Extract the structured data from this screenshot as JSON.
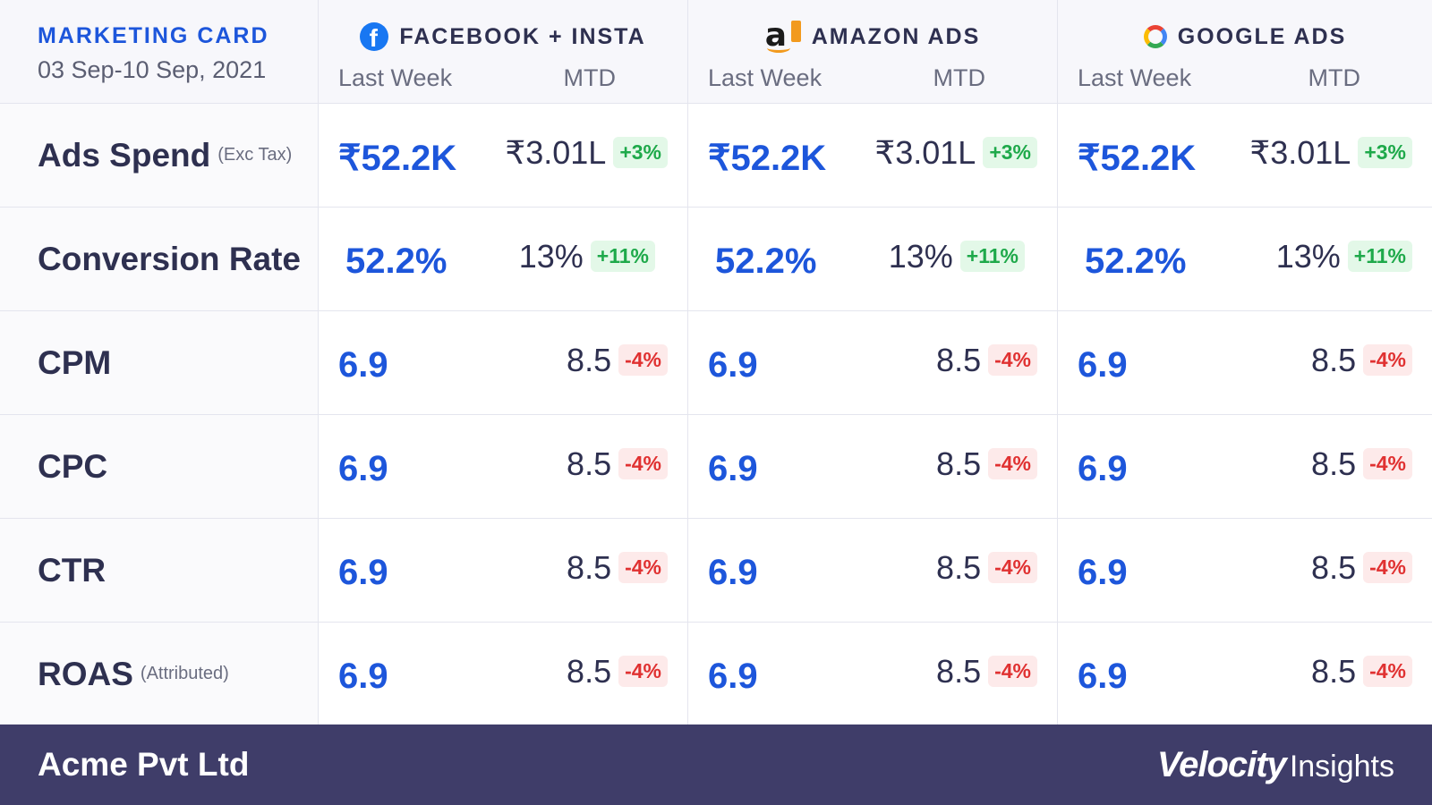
{
  "header": {
    "title": "MARKETING CARD",
    "date_range": "03 Sep-10 Sep, 2021"
  },
  "platforms": [
    {
      "name": "FACEBOOK + INSTA",
      "icon": "facebook-icon",
      "col_last_week": "Last Week",
      "col_mtd": "MTD"
    },
    {
      "name": "AMAZON ADS",
      "icon": "amazon-icon",
      "col_last_week": "Last Week",
      "col_mtd": "MTD"
    },
    {
      "name": "GOOGLE ADS",
      "icon": "google-icon",
      "col_last_week": "Last Week",
      "col_mtd": "MTD"
    }
  ],
  "metrics": [
    {
      "label": "Ads Spend",
      "sub": "(Exc Tax)",
      "values": [
        {
          "last_week": "₹52.2K",
          "mtd": "₹3.01L",
          "change": "+3%",
          "direction": "up"
        },
        {
          "last_week": "₹52.2K",
          "mtd": "₹3.01L",
          "change": "+3%",
          "direction": "up"
        },
        {
          "last_week": "₹52.2K",
          "mtd": "₹3.01L",
          "change": "+3%",
          "direction": "up"
        }
      ]
    },
    {
      "label": "Conversion Rate",
      "sub": "",
      "values": [
        {
          "last_week": "52.2%",
          "mtd": "13%",
          "change": "+11%",
          "direction": "up"
        },
        {
          "last_week": "52.2%",
          "mtd": "13%",
          "change": "+11%",
          "direction": "up"
        },
        {
          "last_week": "52.2%",
          "mtd": "13%",
          "change": "+11%",
          "direction": "up"
        }
      ]
    },
    {
      "label": "CPM",
      "sub": "",
      "values": [
        {
          "last_week": "6.9",
          "mtd": "8.5",
          "change": "-4%",
          "direction": "down"
        },
        {
          "last_week": "6.9",
          "mtd": "8.5",
          "change": "-4%",
          "direction": "down"
        },
        {
          "last_week": "6.9",
          "mtd": "8.5",
          "change": "-4%",
          "direction": "down"
        }
      ]
    },
    {
      "label": "CPC",
      "sub": "",
      "values": [
        {
          "last_week": "6.9",
          "mtd": "8.5",
          "change": "-4%",
          "direction": "down"
        },
        {
          "last_week": "6.9",
          "mtd": "8.5",
          "change": "-4%",
          "direction": "down"
        },
        {
          "last_week": "6.9",
          "mtd": "8.5",
          "change": "-4%",
          "direction": "down"
        }
      ]
    },
    {
      "label": "CTR",
      "sub": "",
      "values": [
        {
          "last_week": "6.9",
          "mtd": "8.5",
          "change": "-4%",
          "direction": "down"
        },
        {
          "last_week": "6.9",
          "mtd": "8.5",
          "change": "-4%",
          "direction": "down"
        },
        {
          "last_week": "6.9",
          "mtd": "8.5",
          "change": "-4%",
          "direction": "down"
        }
      ]
    },
    {
      "label": "ROAS",
      "sub": "(Attributed)",
      "values": [
        {
          "last_week": "6.9",
          "mtd": "8.5",
          "change": "-4%",
          "direction": "down"
        },
        {
          "last_week": "6.9",
          "mtd": "8.5",
          "change": "-4%",
          "direction": "down"
        },
        {
          "last_week": "6.9",
          "mtd": "8.5",
          "change": "-4%",
          "direction": "down"
        }
      ]
    }
  ],
  "footer": {
    "company": "Acme Pvt Ltd",
    "logo_main": "Velocity",
    "logo_sub": "Insights"
  },
  "colors": {
    "accent_blue": "#1d56db",
    "footer_bg": "#3f3d69",
    "up_green": "#1ea94a",
    "down_red": "#e03131"
  }
}
